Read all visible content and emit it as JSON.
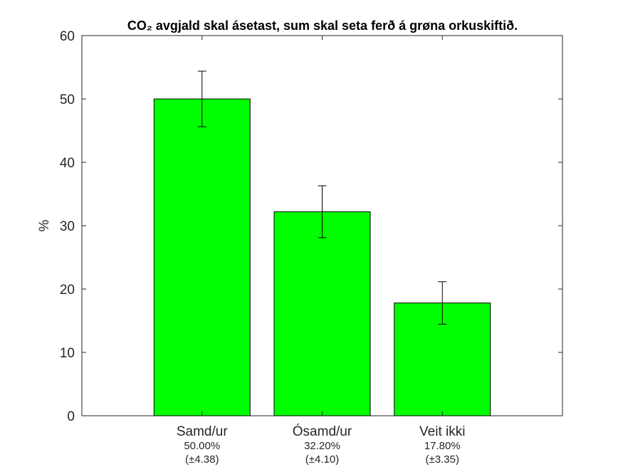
{
  "chart_data": {
    "type": "bar",
    "title": "CO₂ avgjald skal ásetast, sum skal seta ferð á grøna orkuskiftið.",
    "ylabel": "%",
    "xlabel": "",
    "ylim": [
      0,
      60
    ],
    "yticks": [
      0,
      10,
      20,
      30,
      40,
      50,
      60
    ],
    "categories": [
      "Samd/ur",
      "Ósamd/ur",
      "Veit ikki"
    ],
    "values": [
      50.0,
      32.2,
      17.8
    ],
    "errors": [
      4.38,
      4.1,
      3.35
    ],
    "value_labels": [
      "50.00%",
      "32.20%",
      "17.80%"
    ],
    "error_labels": [
      "(±4.38)",
      "(±4.10)",
      "(±3.35)"
    ],
    "bar_color": "#00ff00",
    "grid": false,
    "legend": "none"
  }
}
